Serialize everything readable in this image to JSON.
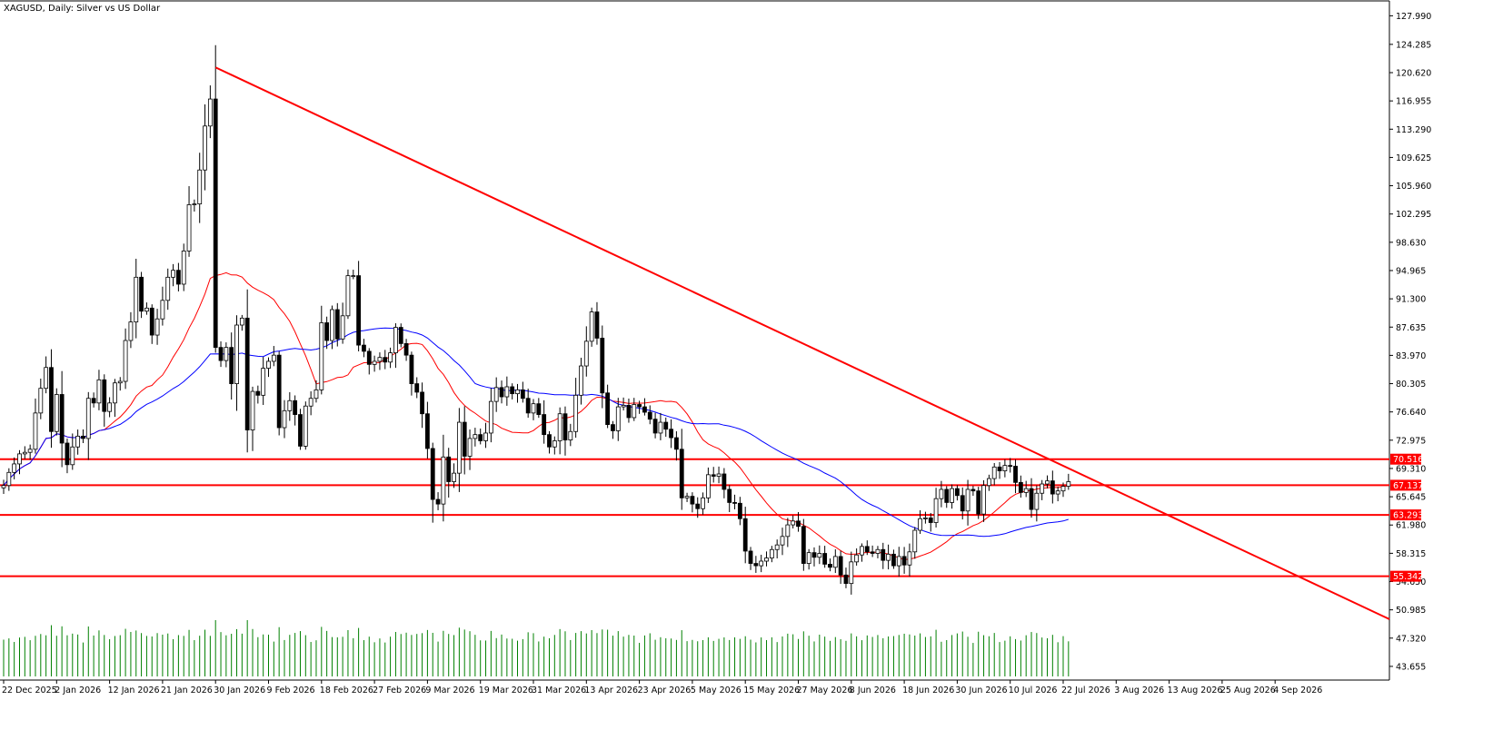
{
  "title": "XAGUSD, Daily:  Silver vs US Dollar",
  "chart_data": {
    "type": "candlestick",
    "ylim": [
      42.0,
      129.8
    ],
    "price_ticks": [
      "127.990",
      "124.285",
      "120.620",
      "116.955",
      "113.290",
      "109.625",
      "105.960",
      "102.295",
      "98.630",
      "94.965",
      "91.300",
      "87.635",
      "83.970",
      "80.305",
      "76.640",
      "72.975",
      "69.310",
      "65.645",
      "61.980",
      "58.315",
      "54.650",
      "50.985",
      "47.320",
      "43.655"
    ],
    "date_labels": [
      "22 Dec 2025",
      "2 Jan 2026",
      "12 Jan 2026",
      "21 Jan 2026",
      "30 Jan 2026",
      "9 Feb 2026",
      "18 Feb 2026",
      "27 Feb 2026",
      "9 Mar 2026",
      "19 Mar 2026",
      "31 Mar 2026",
      "13 Apr 2026",
      "23 Apr 2026",
      "5 May 2026",
      "15 May 2026",
      "27 May 2026",
      "8 Jun 2026",
      "18 Jun 2026",
      "30 Jun 2026",
      "10 Jul 2026",
      "22 Jul 2026",
      "3 Aug 2026",
      "13 Aug 2026",
      "25 Aug 2026",
      "4 Sep 2026"
    ],
    "horizontal_levels": [
      {
        "label": "70.516",
        "value": 70.516,
        "color": "#ff0000"
      },
      {
        "label": "67.137",
        "value": 67.137,
        "color": "#ff0000"
      },
      {
        "label": "63.293",
        "value": 63.293,
        "color": "#ff0000"
      },
      {
        "label": "55.342",
        "value": 55.342,
        "color": "#ff0000"
      }
    ],
    "trendline": {
      "color": "#ff0000",
      "start_index": 40,
      "start_price": 121.3,
      "end_index": 255,
      "end_price": 51.9
    },
    "ma_fast": {
      "color": "#ff0000"
    },
    "ma_slow": {
      "color": "#0000ff"
    },
    "volume_color": "#008000",
    "candle_closes": [
      67.1,
      68.8,
      69.9,
      71.2,
      71.4,
      71.8,
      76.5,
      79.7,
      82.4,
      74.1,
      78.9,
      72.6,
      69.8,
      72.1,
      73.5,
      73.2,
      78.4,
      77.8,
      80.8,
      76.7,
      77.8,
      80.4,
      80.6,
      85.9,
      88.3,
      94.1,
      89.7,
      90.1,
      86.6,
      88.7,
      91.1,
      94.1,
      95.0,
      93.2,
      97.5,
      103.5,
      103.6,
      108.0,
      113.7,
      117.2,
      85.0,
      83.3,
      85.0,
      80.3,
      87.9,
      88.8,
      74.3,
      79.3,
      78.8,
      82.3,
      83.2,
      84.0,
      74.6,
      76.8,
      78.1,
      76.3,
      72.2,
      77.4,
      78.4,
      79.5,
      88.2,
      85.9,
      89.9,
      86.1,
      89.1,
      94.3,
      94.3,
      85.3,
      84.5,
      82.8,
      83.2,
      83.7,
      83.1,
      84.3,
      87.6,
      85.5,
      84.0,
      80.3,
      79.2,
      76.4,
      71.9,
      65.3,
      64.7,
      70.8,
      67.6,
      68.7,
      75.3,
      70.9,
      73.2,
      73.7,
      72.9,
      73.9,
      78.0,
      79.8,
      78.6,
      79.9,
      79.0,
      79.5,
      78.4,
      76.5,
      77.7,
      76.3,
      73.7,
      72.1,
      72.9,
      76.4,
      73.0,
      74.1,
      78.8,
      82.6,
      85.8,
      89.6,
      86.2,
      79.1,
      75.0,
      74.2,
      77.3,
      77.5,
      75.9,
      77.6,
      77.3,
      76.6,
      75.7,
      73.9,
      75.3,
      74.4,
      73.3,
      71.8,
      65.5,
      65.7,
      64.7,
      64.1,
      65.5,
      68.5,
      68.3,
      68.6,
      66.6,
      64.9,
      64.8,
      62.8,
      58.6,
      57.0,
      56.7,
      57.3,
      57.7,
      58.8,
      59.4,
      60.5,
      62.0,
      62.5,
      61.8,
      57.0,
      58.4,
      57.8,
      58.3,
      56.9,
      56.5,
      57.9,
      55.5,
      54.4,
      57.2,
      58.1,
      59.2,
      58.5,
      58.3,
      58.8,
      57.4,
      58.2,
      56.7,
      57.9,
      56.8,
      58.5,
      61.3,
      62.8,
      62.9,
      62.3,
      65.4,
      66.6,
      64.9,
      66.7,
      65.8,
      63.8,
      66.6,
      66.4,
      63.4,
      67.1,
      68.0,
      69.5,
      69.0,
      69.7,
      69.6,
      67.5,
      66.2,
      66.7,
      64.0,
      66.1,
      67.3,
      67.7,
      66.0,
      66.4,
      67.0,
      67.6
    ]
  }
}
